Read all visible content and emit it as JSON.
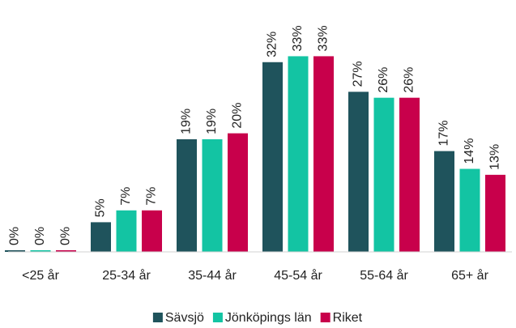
{
  "chart_data": {
    "type": "bar",
    "categories": [
      "<25 år",
      "25-34 år",
      "35-44 år",
      "45-54 år",
      "55-64 år",
      "65+ år"
    ],
    "series": [
      {
        "name": "Sävsjö",
        "color": "#1f535c",
        "values": [
          0,
          5,
          19,
          32,
          27,
          17
        ],
        "value_labels": [
          "0%",
          "5%",
          "19%",
          "32%",
          "27%",
          "17%"
        ]
      },
      {
        "name": "Jönköpings län",
        "color": "#13c4a3",
        "values": [
          0,
          7,
          19,
          33,
          26,
          14
        ],
        "value_labels": [
          "0%",
          "7%",
          "19%",
          "33%",
          "26%",
          "14%"
        ]
      },
      {
        "name": "Riket",
        "color": "#c8004b",
        "values": [
          0,
          7,
          20,
          33,
          26,
          13
        ],
        "value_labels": [
          "0%",
          "7%",
          "20%",
          "33%",
          "26%",
          "13%"
        ]
      }
    ],
    "legend": "bottom"
  }
}
